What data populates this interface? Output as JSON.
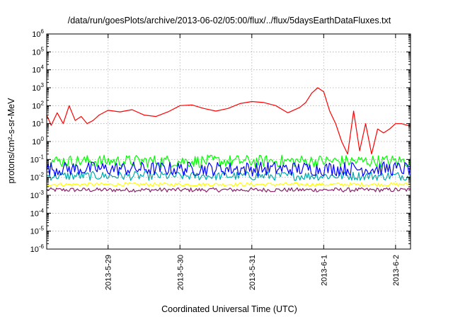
{
  "chart_data": {
    "type": "line",
    "title": "/data/run/goesPlots/archive/2013-06-02/05:00/flux/../flux/5daysEarthDataFluxes.txt",
    "xlabel": "Coordinated Universal Time (UTC)",
    "ylabel": "protons/cm²-s-sr-MeV",
    "y_scale": "log",
    "ylim_exponents": [
      -6,
      6
    ],
    "y_tick_base": "10",
    "y_tick_exponents": [
      "-6",
      "-5",
      "-4",
      "-3",
      "-2",
      "-1",
      "0",
      "1",
      "2",
      "3",
      "4",
      "5",
      "6"
    ],
    "x_ticks": [
      "2013-5-29",
      "2013-5-30",
      "2013-5-31",
      "2013-6-1",
      "2013-6-2"
    ],
    "xlim": [
      "2013-05-28 03:30",
      "2013-06-02 05:00"
    ],
    "grid": true,
    "series": [
      {
        "color": "#ff0000",
        "x": [
          "2013-05-28 03:30",
          "2013-05-28 05:00",
          "2013-05-28 07:00",
          "2013-05-28 09:00",
          "2013-05-28 11:00",
          "2013-05-28 13:00",
          "2013-05-28 15:00",
          "2013-05-28 17:00",
          "2013-05-28 19:00",
          "2013-05-28 21:00",
          "2013-05-29 00:00",
          "2013-05-29 04:00",
          "2013-05-29 08:00",
          "2013-05-29 12:00",
          "2013-05-29 16:00",
          "2013-05-29 20:00",
          "2013-05-30 00:00",
          "2013-05-30 04:00",
          "2013-05-30 08:00",
          "2013-05-30 12:00",
          "2013-05-30 16:00",
          "2013-05-30 20:00",
          "2013-05-31 00:00",
          "2013-05-31 04:00",
          "2013-05-31 08:00",
          "2013-05-31 12:00",
          "2013-05-31 16:00",
          "2013-05-31 18:00",
          "2013-05-31 20:00",
          "2013-05-31 22:00",
          "2013-06-01 00:00",
          "2013-06-01 02:00",
          "2013-06-01 04:00",
          "2013-06-01 06:00",
          "2013-06-01 08:00",
          "2013-06-01 10:00",
          "2013-06-01 12:00",
          "2013-06-01 14:00",
          "2013-06-01 16:00",
          "2013-06-01 18:00",
          "2013-06-01 20:00",
          "2013-06-01 22:00",
          "2013-06-02 00:00",
          "2013-06-02 02:00",
          "2013-06-02 05:00"
        ],
        "values": [
          30,
          8,
          40,
          10,
          100,
          15,
          25,
          10,
          15,
          30,
          55,
          45,
          60,
          30,
          25,
          45,
          100,
          110,
          70,
          50,
          70,
          130,
          170,
          150,
          100,
          40,
          80,
          150,
          500,
          1000,
          600,
          50,
          10,
          1,
          0.2,
          50,
          0.3,
          10,
          0.2,
          5,
          3,
          5,
          10,
          10,
          7
        ]
      },
      {
        "color": "#00ff00",
        "level": 0.08,
        "spread_decades": 0.35
      },
      {
        "color": "#0000ff",
        "level": 0.03,
        "spread_decades": 0.4
      },
      {
        "color": "#00aaaa",
        "level": 0.012,
        "spread_decades": 0.25
      },
      {
        "color": "#ffff00",
        "level": 0.004,
        "spread_decades": 0.1
      },
      {
        "color": "#882266",
        "level": 0.002,
        "spread_decades": 0.12
      }
    ]
  }
}
